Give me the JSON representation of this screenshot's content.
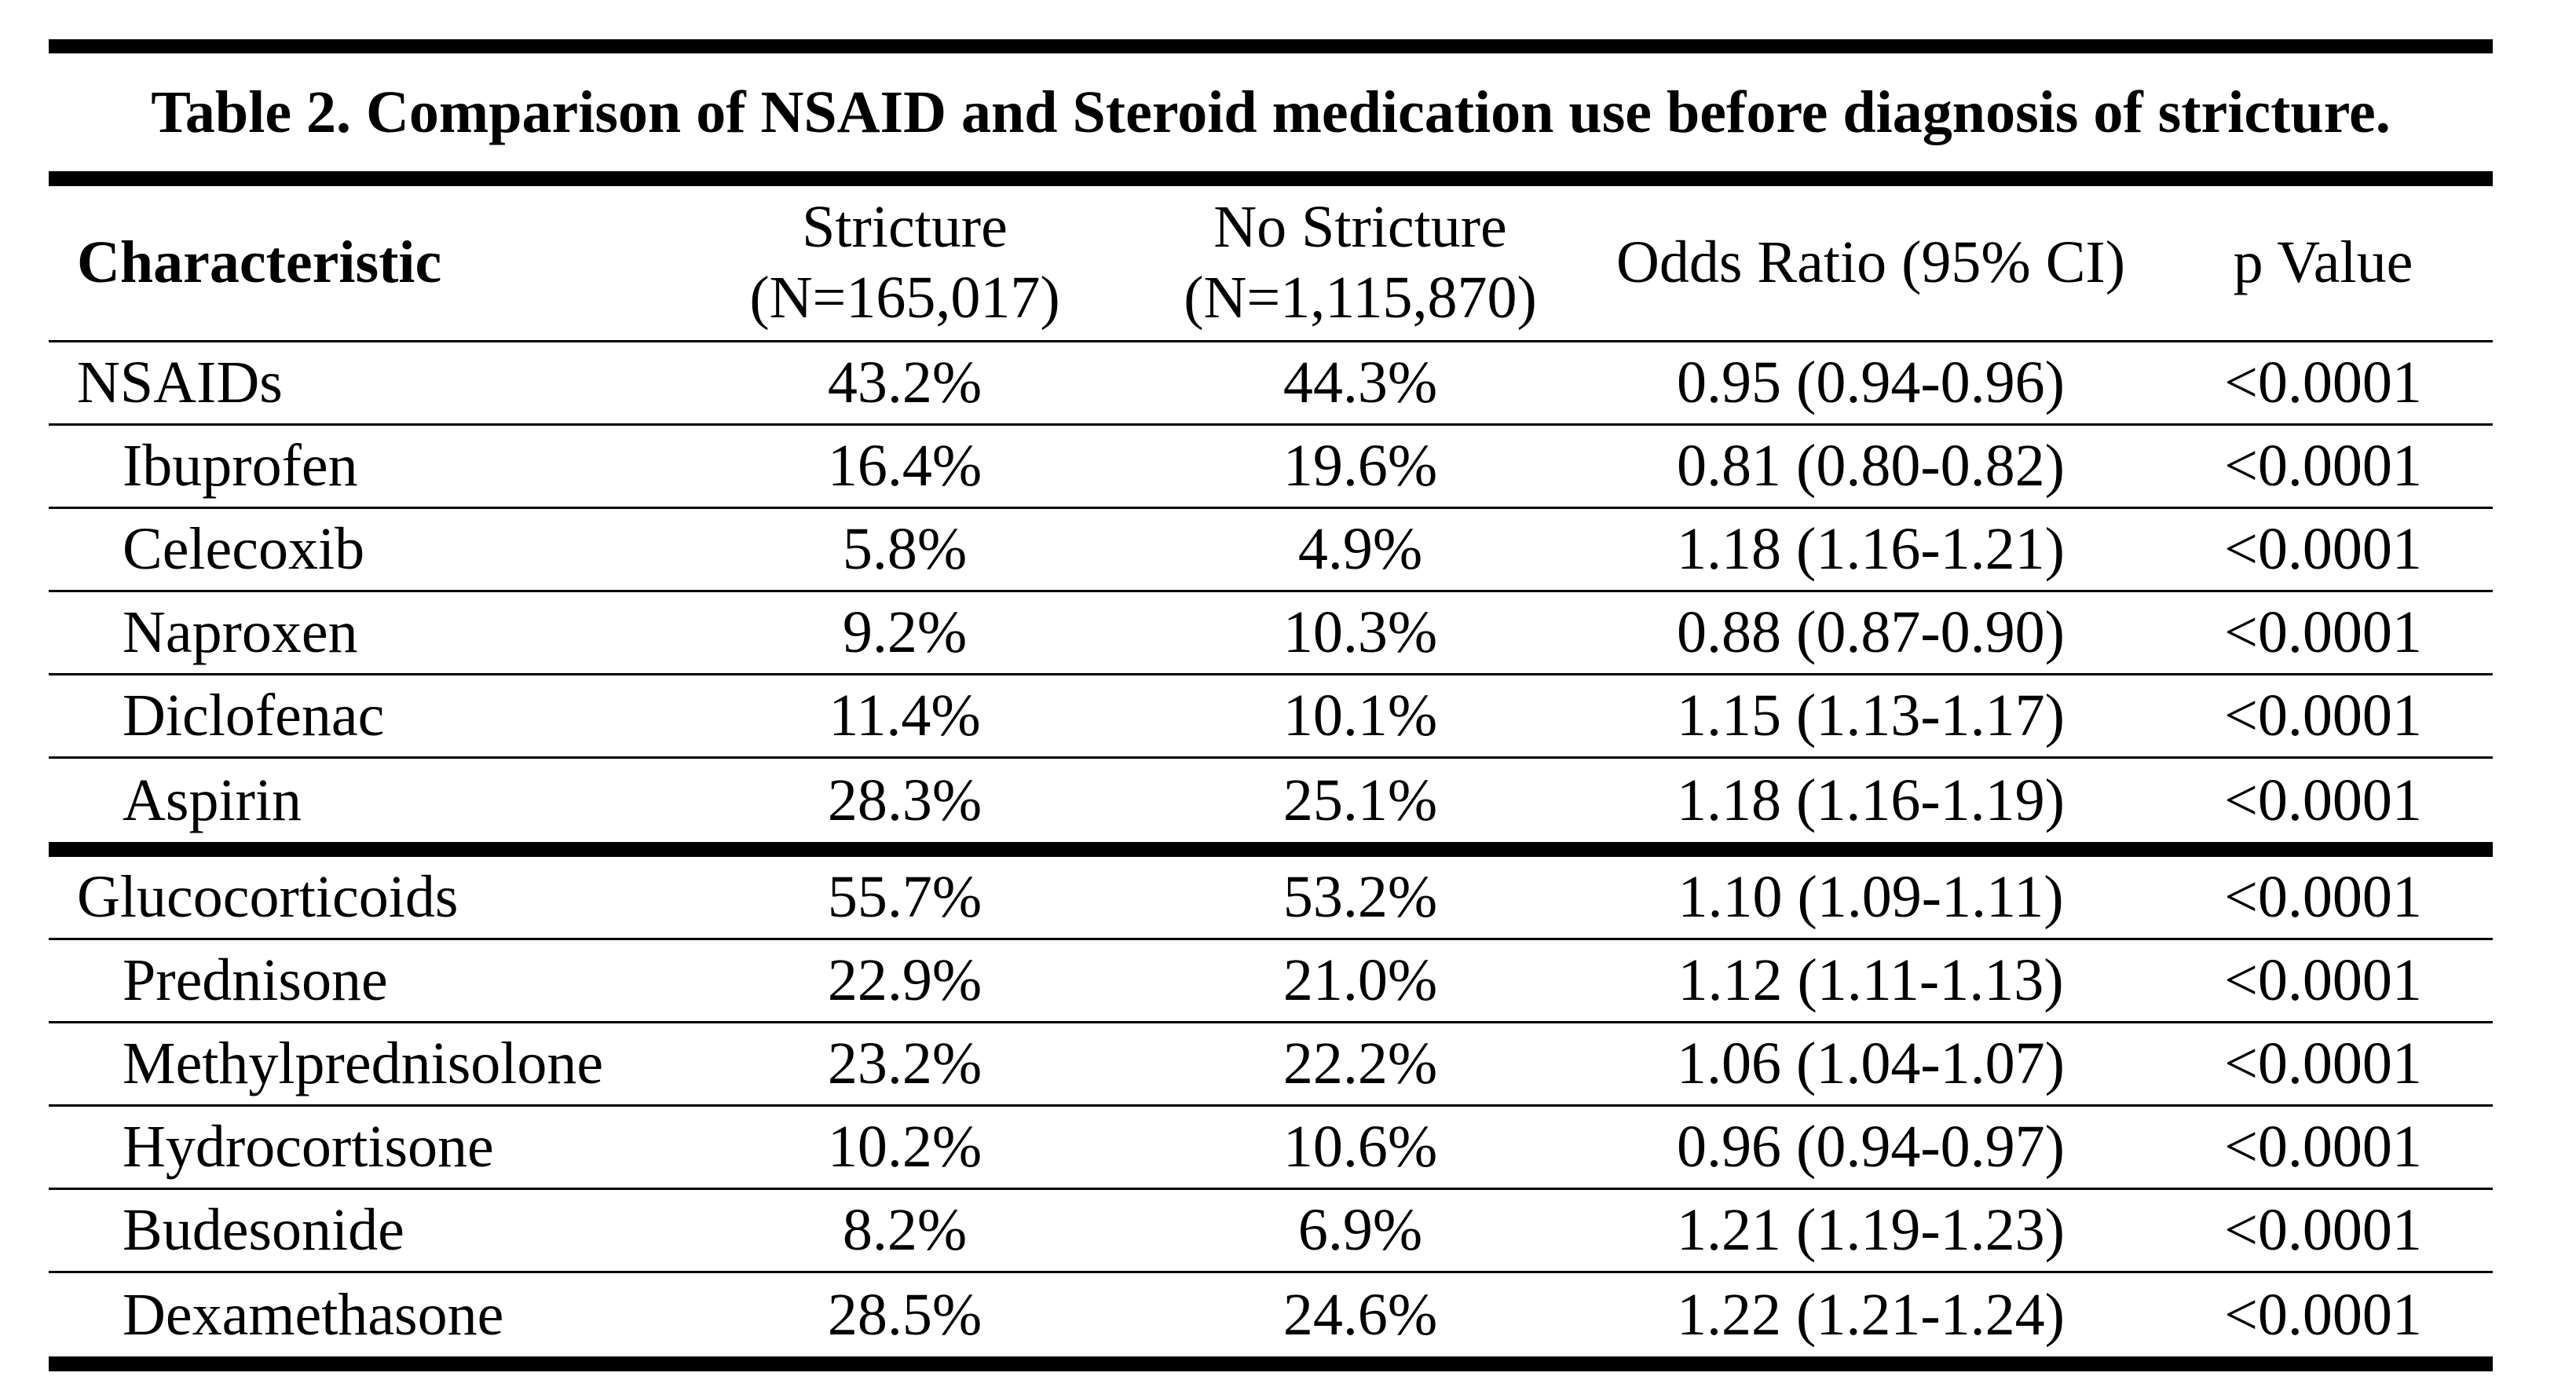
{
  "table": {
    "title": "Table 2. Comparison of NSAID and Steroid medication use before diagnosis of stricture.",
    "headers": {
      "characteristic": "Characteristic",
      "stricture_line1": "Stricture",
      "stricture_line2": "(N=165,017)",
      "no_stricture_line1": "No Stricture",
      "no_stricture_line2": "(N=1,115,870)",
      "odds_ratio": "Odds Ratio (95% CI)",
      "p_value": "p Value"
    },
    "sections": [
      {
        "rows": [
          {
            "name": "NSAIDs",
            "stricture": "43.2%",
            "no_stricture": "44.3%",
            "odds_ratio": "0.95 (0.94-0.96)",
            "p_value": "<0.0001"
          },
          {
            "name": "Ibuprofen",
            "stricture": "16.4%",
            "no_stricture": "19.6%",
            "odds_ratio": "0.81 (0.80-0.82)",
            "p_value": "<0.0001"
          },
          {
            "name": "Celecoxib",
            "stricture": "5.8%",
            "no_stricture": "4.9%",
            "odds_ratio": "1.18 (1.16-1.21)",
            "p_value": "<0.0001"
          },
          {
            "name": "Naproxen",
            "stricture": "9.2%",
            "no_stricture": "10.3%",
            "odds_ratio": "0.88 (0.87-0.90)",
            "p_value": "<0.0001"
          },
          {
            "name": "Diclofenac",
            "stricture": "11.4%",
            "no_stricture": "10.1%",
            "odds_ratio": "1.15 (1.13-1.17)",
            "p_value": "<0.0001"
          },
          {
            "name": "Aspirin",
            "stricture": "28.3%",
            "no_stricture": "25.1%",
            "odds_ratio": "1.18 (1.16-1.19)",
            "p_value": "<0.0001"
          }
        ]
      },
      {
        "rows": [
          {
            "name": "Glucocorticoids",
            "stricture": "55.7%",
            "no_stricture": "53.2%",
            "odds_ratio": "1.10 (1.09-1.11)",
            "p_value": "<0.0001"
          },
          {
            "name": "Prednisone",
            "stricture": "22.9%",
            "no_stricture": "21.0%",
            "odds_ratio": "1.12 (1.11-1.13)",
            "p_value": "<0.0001"
          },
          {
            "name": "Methylprednisolone",
            "stricture": "23.2%",
            "no_stricture": "22.2%",
            "odds_ratio": "1.06 (1.04-1.07)",
            "p_value": "<0.0001"
          },
          {
            "name": "Hydrocortisone",
            "stricture": "10.2%",
            "no_stricture": "10.6%",
            "odds_ratio": "0.96 (0.94-0.97)",
            "p_value": "<0.0001"
          },
          {
            "name": "Budesonide",
            "stricture": "8.2%",
            "no_stricture": "6.9%",
            "odds_ratio": "1.21 (1.19-1.23)",
            "p_value": "<0.0001"
          },
          {
            "name": "Dexamethasone",
            "stricture": "28.5%",
            "no_stricture": "24.6%",
            "odds_ratio": "1.22 (1.21-1.24)",
            "p_value": "<0.0001"
          }
        ]
      }
    ]
  }
}
